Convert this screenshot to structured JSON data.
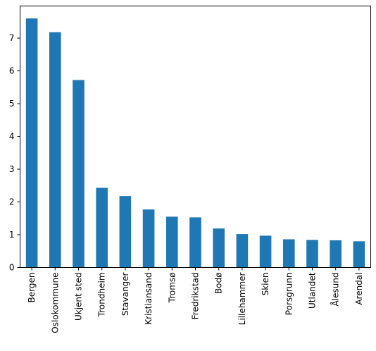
{
  "chart_data": {
    "type": "bar",
    "categories": [
      "Bergen",
      "Oslokommune",
      "Ukjent sted",
      "Trondheim",
      "Stavanger",
      "Kristiansand",
      "Tromsø",
      "Fredrikstad",
      "Bodø",
      "Lillehammer",
      "Skien",
      "Porsgrunn",
      "Utlandet",
      "Ålesund",
      "Arendal"
    ],
    "values": [
      7.6,
      7.18,
      5.72,
      2.43,
      2.18,
      1.77,
      1.55,
      1.53,
      1.19,
      1.02,
      0.97,
      0.86,
      0.84,
      0.83,
      0.8
    ],
    "title": "",
    "xlabel": "",
    "ylabel": "",
    "ylim": [
      0,
      7.98
    ],
    "yticks": [
      0,
      1,
      2,
      3,
      4,
      5,
      6,
      7
    ],
    "ytick_labels": [
      "0",
      "1",
      "2",
      "3",
      "4",
      "5",
      "6",
      "7"
    ],
    "grid": false,
    "legend": false,
    "bar_color": "#1f77b4"
  }
}
